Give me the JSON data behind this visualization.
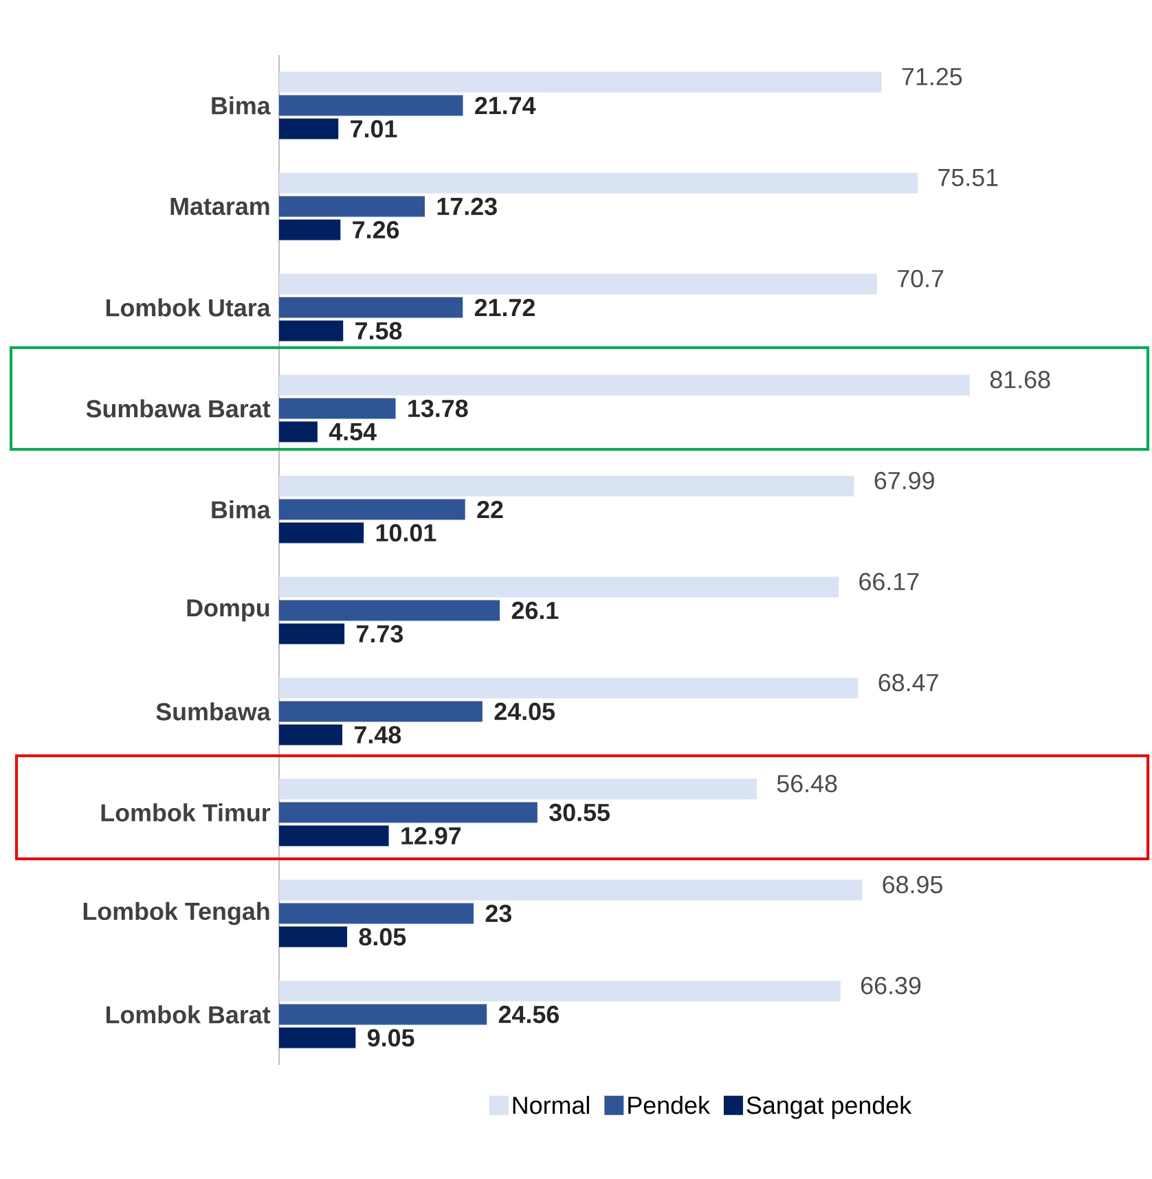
{
  "chart_data": {
    "type": "bar",
    "orientation": "horizontal",
    "categories": [
      "Bima",
      "Mataram",
      "Lombok Utara",
      "Sumbawa Barat",
      "Bima",
      "Dompu",
      "Sumbawa",
      "Lombok Timur",
      "Lombok Tengah",
      "Lombok Barat"
    ],
    "series": [
      {
        "name": "Normal",
        "color": "#dae3f3",
        "values": [
          71.25,
          75.51,
          70.7,
          81.68,
          67.99,
          66.17,
          68.47,
          56.48,
          68.95,
          66.39
        ]
      },
      {
        "name": "Pendek",
        "color": "#2f5597",
        "values": [
          21.74,
          17.23,
          21.72,
          13.78,
          22,
          26.1,
          24.05,
          30.55,
          23,
          24.56
        ]
      },
      {
        "name": "Sangat pendek",
        "color": "#002060",
        "values": [
          7.01,
          7.26,
          7.58,
          4.54,
          10.01,
          7.73,
          7.48,
          12.97,
          8.05,
          9.05
        ]
      }
    ],
    "data_labels": true,
    "tick_labels": "y",
    "legend": "bottom",
    "grid": false
  }
}
